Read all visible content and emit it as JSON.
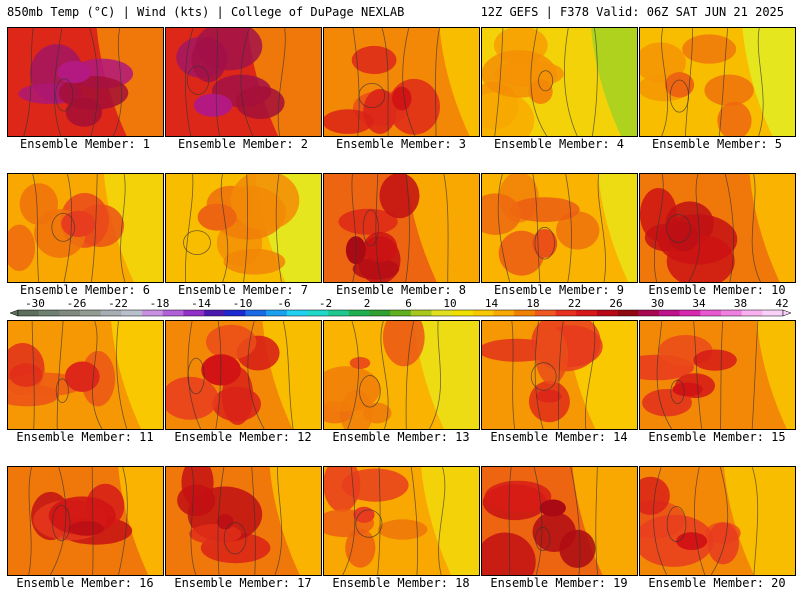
{
  "header": {
    "title_left": "850mb Temp (°C) | Wind (kts) | College of DuPage NEXLAB",
    "title_right": "12Z GEFS | F378 Valid: 06Z SAT JUN 21 2025"
  },
  "members": [
    {
      "label": "Ensemble Member: 1",
      "level": 29
    },
    {
      "label": "Ensemble Member: 2",
      "level": 29
    },
    {
      "label": "Ensemble Member: 3",
      "level": 24
    },
    {
      "label": "Ensemble Member: 4",
      "level": 18
    },
    {
      "label": "Ensemble Member: 5",
      "level": 20
    },
    {
      "label": "Ensemble Member: 6",
      "level": 22
    },
    {
      "label": "Ensemble Member: 7",
      "level": 20
    },
    {
      "label": "Ensemble Member: 8",
      "level": 26
    },
    {
      "label": "Ensemble Member: 9",
      "level": 21
    },
    {
      "label": "Ensemble Member: 10",
      "level": 25
    },
    {
      "label": "Ensemble Member: 11",
      "level": 23
    },
    {
      "label": "Ensemble Member: 12",
      "level": 24
    },
    {
      "label": "Ensemble Member: 13",
      "level": 21
    },
    {
      "label": "Ensemble Member: 14",
      "level": 23
    },
    {
      "label": "Ensemble Member: 15",
      "level": 24
    },
    {
      "label": "Ensemble Member: 16",
      "level": 25
    },
    {
      "label": "Ensemble Member: 17",
      "level": 25
    },
    {
      "label": "Ensemble Member: 18",
      "level": 22
    },
    {
      "label": "Ensemble Member: 19",
      "level": 26
    },
    {
      "label": "Ensemble Member: 20",
      "level": 24
    }
  ],
  "colorbar": {
    "labels": [
      "-30",
      "-26",
      "-22",
      "-18",
      "-14",
      "-10",
      "-6",
      "-2",
      "2",
      "6",
      "10",
      "14",
      "18",
      "22",
      "26",
      "30",
      "34",
      "38",
      "42"
    ],
    "colors": [
      "#5c6e5c",
      "#6e8070",
      "#808a80",
      "#939b93",
      "#a6aeb4",
      "#b8c0cc",
      "#c890e0",
      "#b060d8",
      "#9030c8",
      "#4a1ab0",
      "#1a2ad0",
      "#1a6ae8",
      "#1aa0f0",
      "#20d0f0",
      "#20d8c8",
      "#20c890",
      "#20b050",
      "#30a030",
      "#60b020",
      "#a8c820",
      "#e0e020",
      "#f0e000",
      "#f8c800",
      "#f8a800",
      "#f08000",
      "#f05820",
      "#e83020",
      "#d81818",
      "#b80818",
      "#900810",
      "#a80850",
      "#c0108a",
      "#d828b0",
      "#e858d0",
      "#f080e0",
      "#f8b0f0",
      "#f8d0f8"
    ]
  }
}
